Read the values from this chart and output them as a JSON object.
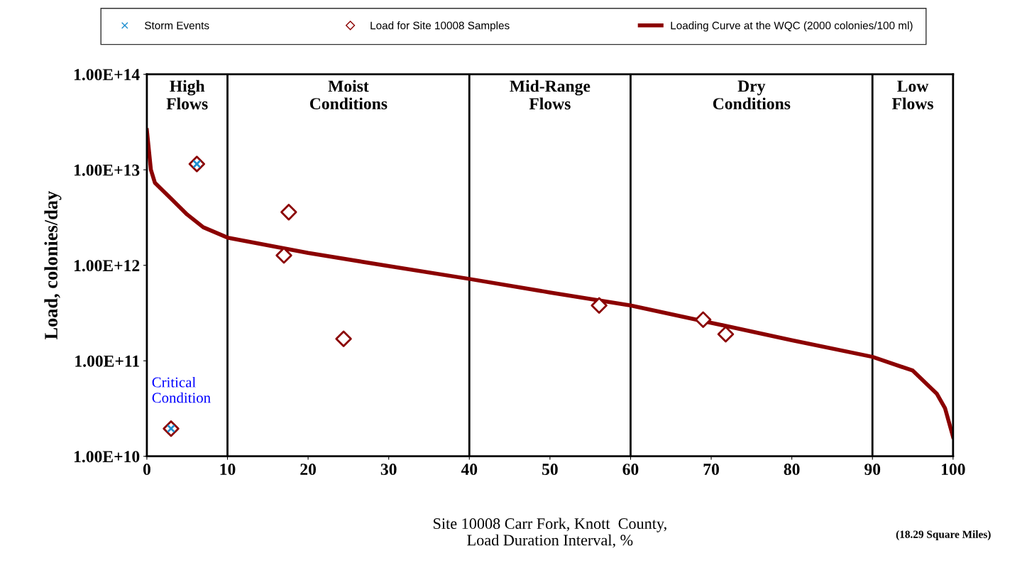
{
  "chart_data": {
    "type": "scatter",
    "xlabel": "Site 10008 Carr Fork, Knott  County,\nLoad Duration Interval, %",
    "ylabel": "Load, colonies/day",
    "log": "y",
    "grid": false,
    "legend": "top",
    "xlim": [
      0,
      100
    ],
    "xticks": [
      0,
      10,
      20,
      30,
      40,
      50,
      60,
      70,
      80,
      90,
      100
    ],
    "ylim": [
      10000000000.0,
      100000000000000.0
    ],
    "yticks": [
      {
        "value": 10000000000.0,
        "label": "1.00E+10"
      },
      {
        "value": 100000000000.0,
        "label": "1.00E+11"
      },
      {
        "value": 1000000000000.0,
        "label": "1.00E+12"
      },
      {
        "value": 10000000000000.0,
        "label": "1.00E+13"
      },
      {
        "value": 100000000000000.0,
        "label": "1.00E+14"
      }
    ],
    "series": [
      {
        "name": "Storm Events",
        "marker": "cross",
        "color": "#1f8fd0",
        "x": [
          6.2,
          3.0
        ],
        "values": [
          11500000000000.0,
          19500000000.0
        ]
      },
      {
        "name": "Load for Site 10008 Samples",
        "marker": "diamond",
        "color": "#8b0000",
        "x": [
          6.2,
          17.6,
          17.0,
          24.4,
          56.1,
          69.0,
          71.8,
          3.0
        ],
        "values": [
          11500000000000.0,
          3600000000000.0,
          1270000000000.0,
          170000000000.0,
          380000000000.0,
          270000000000.0,
          190000000000.0,
          19500000000.0
        ]
      },
      {
        "name": "Loading Curve at the WQC (2000 colonies/100 ml)",
        "type": "line",
        "marker": "none",
        "color": "#8b0000",
        "x": [
          0,
          0.5,
          1,
          3,
          5,
          7,
          10,
          20,
          30,
          40,
          50,
          60,
          70,
          80,
          90,
          95,
          98,
          99,
          100
        ],
        "values": [
          26000000000000.0,
          10000000000000.0,
          7300000000000.0,
          5000000000000.0,
          3400000000000.0,
          2500000000000.0,
          1950000000000.0,
          1350000000000.0,
          980000000000.0,
          720000000000.0,
          520000000000.0,
          380000000000.0,
          250000000000.0,
          164000000000.0,
          110000000000.0,
          79000000000.0,
          45000000000.0,
          32000000000.0,
          16000000000.0
        ]
      }
    ],
    "ref_lines": [
      {
        "axis": "x",
        "value": 10,
        "color": "#000000"
      },
      {
        "axis": "x",
        "value": 40,
        "color": "#000000"
      },
      {
        "axis": "x",
        "value": 60,
        "color": "#000000"
      },
      {
        "axis": "x",
        "value": 90,
        "color": "#000000"
      }
    ],
    "annotations": [
      "High\nFlows",
      "Moist\nConditions",
      "Mid-Range\nFlows",
      "Dry\nConditions",
      "Low\nFlows",
      "Critical\nCondition",
      "(18.29 Square Miles)"
    ]
  }
}
